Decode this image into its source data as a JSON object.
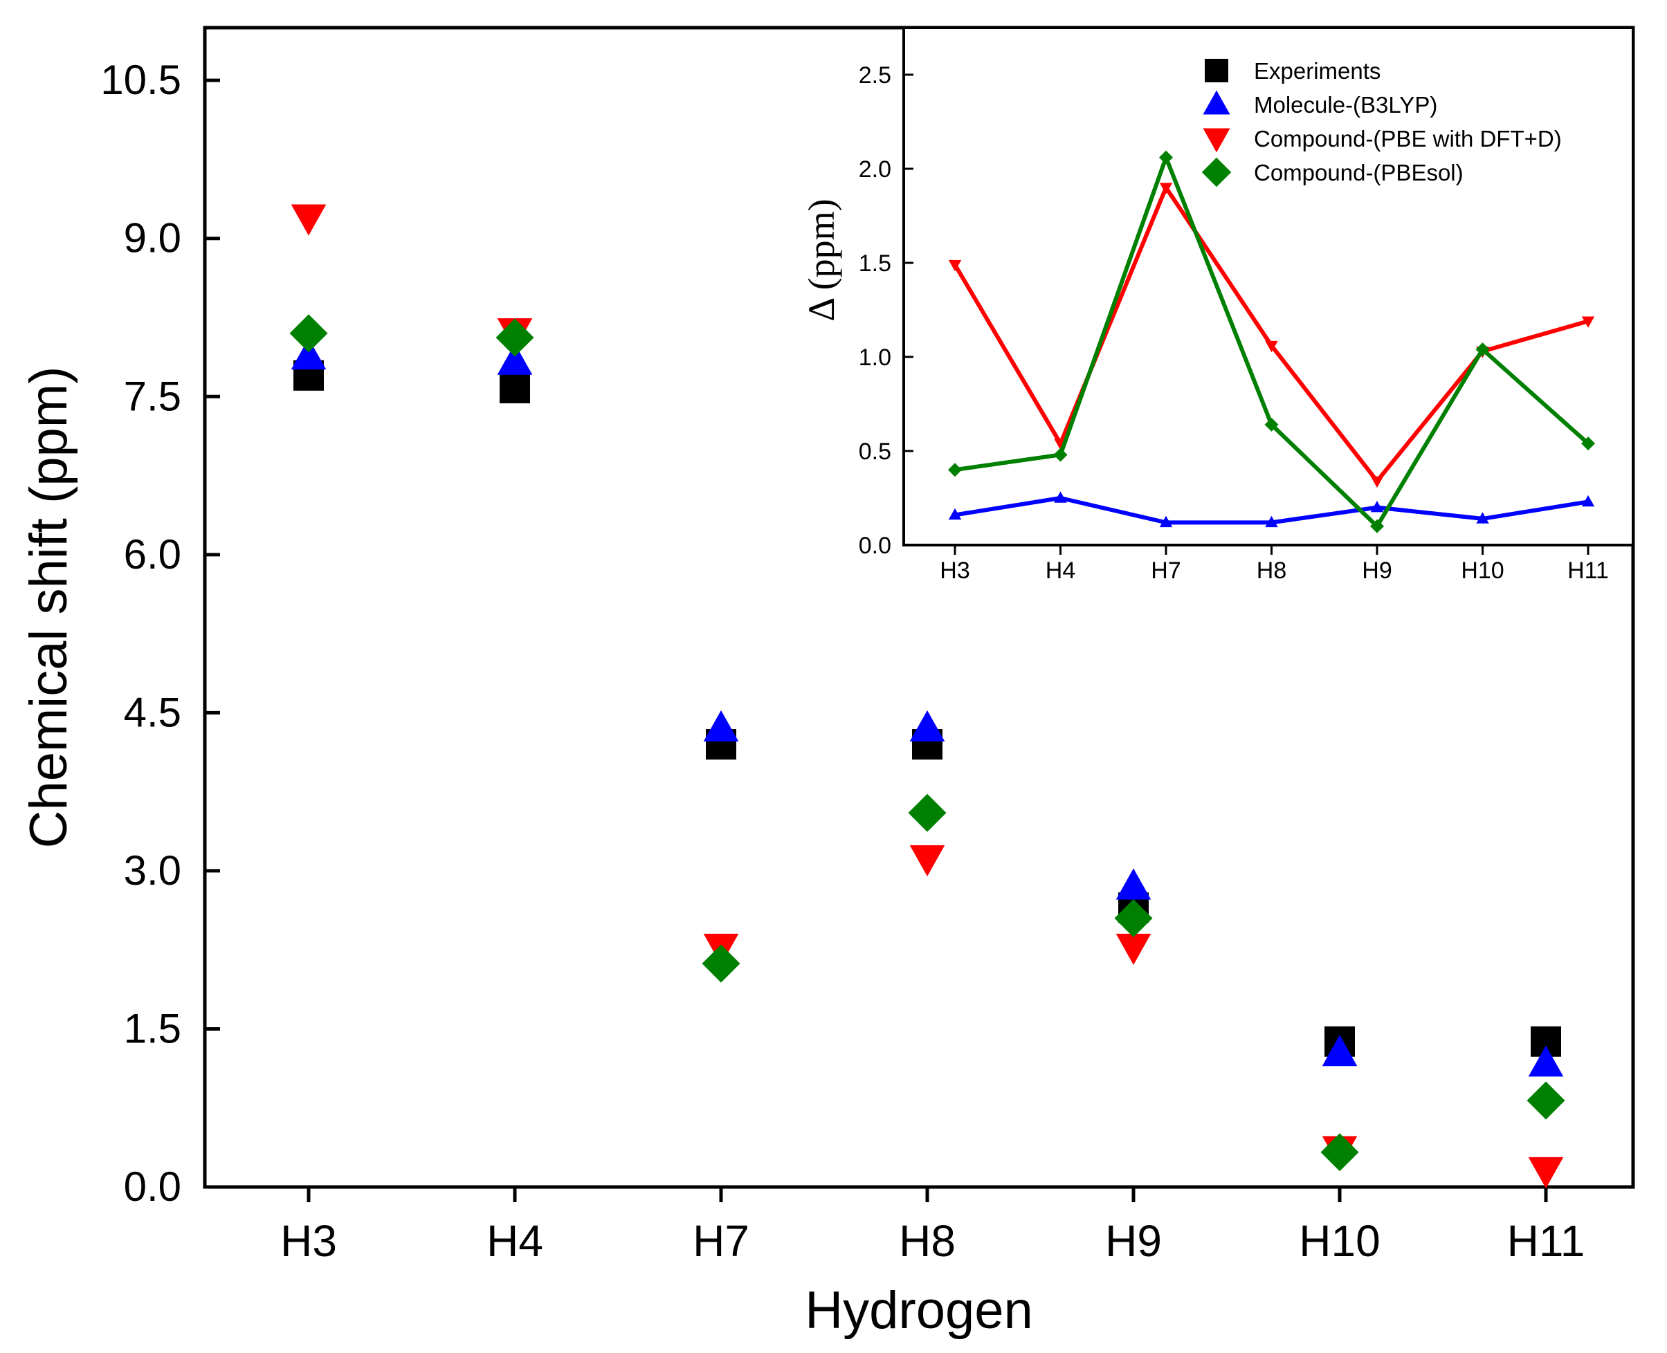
{
  "colors": {
    "Experiments": "#000000",
    "Molecule-(B3LYP)": "#0000ff",
    "Compound-(PBE with DFT+D)": "#ff0000",
    "Compound-(PBEsol)": "#008000"
  },
  "chart_data": [
    {
      "type": "scatter",
      "xlabel": "Hydrogen",
      "ylabel": "Chemical shift (ppm)",
      "categories": [
        "H3",
        "H4",
        "H7",
        "H8",
        "H9",
        "H10",
        "H11"
      ],
      "ylim": [
        0,
        11
      ],
      "yticks": [
        "0.0",
        "1.5",
        "3.0",
        "4.5",
        "6.0",
        "7.5",
        "9.0",
        "10.5"
      ],
      "series": [
        {
          "name": "Experiments",
          "marker": "square",
          "values": [
            7.7,
            7.58,
            4.2,
            4.2,
            2.65,
            1.38,
            1.38
          ]
        },
        {
          "name": "Molecule-(B3LYP)",
          "marker": "triangle-up",
          "values": [
            7.88,
            7.83,
            4.35,
            4.35,
            2.85,
            1.27,
            1.17
          ]
        },
        {
          "name": "Compound-(PBE with DFT+D)",
          "marker": "triangle-down",
          "values": [
            9.2,
            8.12,
            2.28,
            3.12,
            2.28,
            0.36,
            0.16
          ]
        },
        {
          "name": "Compound-(PBEsol)",
          "marker": "diamond",
          "values": [
            8.1,
            8.06,
            2.12,
            3.55,
            2.55,
            0.33,
            0.82
          ]
        }
      ]
    },
    {
      "type": "line",
      "ylabel": "Δ (ppm)",
      "categories": [
        "H3",
        "H4",
        "H7",
        "H8",
        "H9",
        "H10",
        "H11"
      ],
      "ylim": [
        0,
        2.75
      ],
      "yticks": [
        "0.0",
        "0.5",
        "1.0",
        "1.5",
        "2.0",
        "2.5"
      ],
      "legend": "top-right",
      "series": [
        {
          "name": "Molecule-(B3LYP)",
          "values": [
            0.16,
            0.25,
            0.12,
            0.12,
            0.2,
            0.14,
            0.23
          ]
        },
        {
          "name": "Compound-(PBE with DFT+D)",
          "values": [
            1.49,
            0.54,
            1.9,
            1.06,
            0.34,
            1.03,
            1.19
          ]
        },
        {
          "name": "Compound-(PBEsol)",
          "values": [
            0.4,
            0.48,
            2.06,
            0.64,
            0.1,
            1.04,
            0.54
          ]
        }
      ],
      "legend_entries": [
        {
          "name": "Experiments",
          "marker": "square"
        },
        {
          "name": "Molecule-(B3LYP)",
          "marker": "triangle-up"
        },
        {
          "name": "Compound-(PBE with DFT+D)",
          "marker": "triangle-down"
        },
        {
          "name": "Compound-(PBEsol)",
          "marker": "diamond"
        }
      ]
    }
  ]
}
